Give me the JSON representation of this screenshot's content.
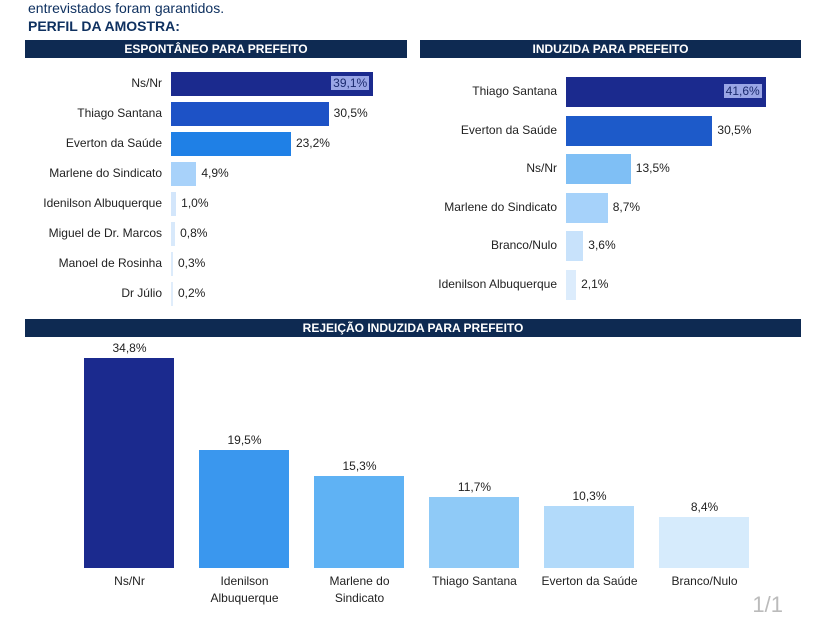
{
  "intro_text": "entrevistados foram garantidos.",
  "section_title": "PERFIL DA AMOSTRA:",
  "page_indicator": "1/1",
  "chart_data": [
    {
      "type": "bar",
      "orientation": "horizontal",
      "title": "ESPONTÂNEO PARA PREFEITO",
      "categories": [
        "Ns/Nr",
        "Thiago Santana",
        "Everton da Saúde",
        "Marlene do Sindicato",
        "Idenilson Albuquerque",
        "Miguel de Dr. Marcos",
        "Manoel de Rosinha",
        "Dr Júlio"
      ],
      "values": [
        39.1,
        30.5,
        23.2,
        4.9,
        1.0,
        0.8,
        0.3,
        0.2
      ],
      "labels": [
        "39,1%",
        "30,5%",
        "23,2%",
        "4,9%",
        "1,0%",
        "0,8%",
        "0,3%",
        "0,2%"
      ],
      "colors": [
        "#1b2a8e",
        "#1d52c6",
        "#1f80e6",
        "#a8d2fa",
        "#d3e6fb",
        "#d8e9fb",
        "#dcebfb",
        "#e0edfb"
      ]
    },
    {
      "type": "bar",
      "orientation": "horizontal",
      "title": "INDUZIDA PARA PREFEITO",
      "categories": [
        "Thiago Santana",
        "Everton da Saúde",
        "Ns/Nr",
        "Marlene do Sindicato",
        "Branco/Nulo",
        "Idenilson Albuquerque"
      ],
      "values": [
        41.6,
        30.5,
        13.5,
        8.7,
        3.6,
        2.1
      ],
      "labels": [
        "41,6%",
        "30,5%",
        "13,5%",
        "8,7%",
        "3,6%",
        "2,1%"
      ],
      "colors": [
        "#1b2a8e",
        "#1d5ac9",
        "#7fbff5",
        "#a6d2fa",
        "#c8e2fb",
        "#dcecfc"
      ]
    },
    {
      "type": "bar",
      "orientation": "vertical",
      "title": "REJEIÇÃO INDUZIDA PARA PREFEITO",
      "categories": [
        [
          "Ns/Nr"
        ],
        [
          "Idenilson",
          "Albuquerque"
        ],
        [
          "Marlene do",
          "Sindicato"
        ],
        [
          "Thiago Santana"
        ],
        [
          "Everton da Saúde"
        ],
        [
          "Branco/Nulo"
        ]
      ],
      "values": [
        34.8,
        19.5,
        15.3,
        11.7,
        10.3,
        8.4
      ],
      "labels": [
        "34,8%",
        "19,5%",
        "15,3%",
        "11,7%",
        "10,3%",
        "8,4%"
      ],
      "colors": [
        "#1b2a8e",
        "#3a97ee",
        "#5fb2f4",
        "#8fcaf7",
        "#b2dafa",
        "#d6ebfc"
      ]
    }
  ]
}
